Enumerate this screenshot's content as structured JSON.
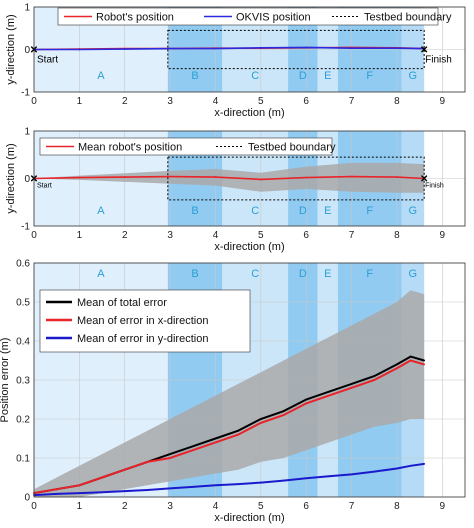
{
  "chart_data": [
    {
      "type": "line",
      "xlabel": "x-direction (m)",
      "ylabel": "y-direction (m)",
      "xlim": [
        0,
        9.5
      ],
      "ylim": [
        -1,
        1
      ],
      "xticks": [
        "0",
        "1",
        "2",
        "3",
        "4",
        "5",
        "6",
        "7",
        "8",
        "9"
      ],
      "yticks": [
        "-1",
        "0",
        "1"
      ],
      "grid": true,
      "legend_position": "top",
      "legend": [
        {
          "label": "Robot's position",
          "color": "#e8232a",
          "style": "solid"
        },
        {
          "label": "OKVIS position",
          "color": "#2a2ae0",
          "style": "solid"
        },
        {
          "label": "Testbed boundary",
          "color": "#000000",
          "style": "dotted"
        }
      ],
      "annotations": {
        "start": "Start",
        "finish": "Finish"
      },
      "zones": [
        {
          "label": "A",
          "from": 0,
          "to": 2.95
        },
        {
          "label": "B",
          "from": 2.95,
          "to": 4.15
        },
        {
          "label": "C",
          "from": 4.15,
          "to": 5.6
        },
        {
          "label": "D",
          "from": 5.6,
          "to": 6.25
        },
        {
          "label": "E",
          "from": 6.25,
          "to": 6.7
        },
        {
          "label": "F",
          "from": 6.7,
          "to": 8.1
        },
        {
          "label": "G",
          "from": 8.1,
          "to": 8.6
        }
      ],
      "boundary": {
        "x": [
          2.95,
          8.6
        ],
        "y": [
          -0.45,
          0.45
        ]
      },
      "series": [
        {
          "name": "Robot's position",
          "x": [
            0,
            1,
            2,
            3,
            4,
            5,
            6,
            7,
            8,
            8.6
          ],
          "y": [
            0,
            0.01,
            0.02,
            0.02,
            0.03,
            0.03,
            0.04,
            0.05,
            0.04,
            0.02
          ]
        },
        {
          "name": "OKVIS position",
          "x": [
            0,
            1,
            2,
            3,
            4,
            5,
            6,
            7,
            8,
            8.6
          ],
          "y": [
            0,
            0.0,
            0.01,
            0.02,
            0.02,
            0.04,
            0.05,
            0.03,
            0.03,
            0.02
          ]
        }
      ]
    },
    {
      "type": "line",
      "xlabel": "x-direction (m)",
      "ylabel": "y-direction (m)",
      "xlim": [
        0,
        9.5
      ],
      "ylim": [
        -1,
        1
      ],
      "xticks": [
        "0",
        "1",
        "2",
        "3",
        "4",
        "5",
        "6",
        "7",
        "8",
        "9"
      ],
      "yticks": [
        "-1",
        "0",
        "1"
      ],
      "grid": true,
      "legend_position": "top",
      "legend": [
        {
          "label": "Mean robot's position",
          "color": "#e8232a",
          "style": "solid"
        },
        {
          "label": "Testbed boundary",
          "color": "#000000",
          "style": "dotted"
        }
      ],
      "annotations": {
        "start": "Start",
        "finish": "Finish"
      },
      "zones": [
        {
          "label": "A",
          "from": 0,
          "to": 2.95
        },
        {
          "label": "B",
          "from": 2.95,
          "to": 4.15
        },
        {
          "label": "C",
          "from": 4.15,
          "to": 5.6
        },
        {
          "label": "D",
          "from": 5.6,
          "to": 6.25
        },
        {
          "label": "E",
          "from": 6.25,
          "to": 6.7
        },
        {
          "label": "F",
          "from": 6.7,
          "to": 8.1
        },
        {
          "label": "G",
          "from": 8.1,
          "to": 8.6
        }
      ],
      "boundary": {
        "x": [
          2.95,
          8.6
        ],
        "y": [
          -0.45,
          0.45
        ]
      },
      "series": [
        {
          "name": "Mean robot's position",
          "x": [
            0,
            1,
            2,
            3,
            4,
            5,
            6,
            7,
            8,
            8.6
          ],
          "y": [
            0,
            0.02,
            0.03,
            0.04,
            0.03,
            -0.02,
            0.02,
            0.04,
            0.03,
            0.0
          ],
          "band_lower": [
            0,
            -0.03,
            -0.07,
            -0.11,
            -0.15,
            -0.28,
            -0.22,
            -0.28,
            -0.3,
            -0.3
          ],
          "band_upper": [
            0,
            0.06,
            0.11,
            0.16,
            0.2,
            0.12,
            0.25,
            0.33,
            0.33,
            0.3
          ]
        }
      ]
    },
    {
      "type": "line",
      "xlabel": "x-direction (m)",
      "ylabel": "Position error (m)",
      "xlim": [
        0,
        9.5
      ],
      "ylim": [
        0,
        0.6
      ],
      "xticks": [
        "0",
        "1",
        "2",
        "3",
        "4",
        "5",
        "6",
        "7",
        "8",
        "9"
      ],
      "yticks": [
        "0",
        "0.1",
        "0.2",
        "0.3",
        "0.4",
        "0.5",
        "0.6"
      ],
      "grid": true,
      "legend_position": "upper-left",
      "zones": [
        {
          "label": "A",
          "from": 0,
          "to": 2.95
        },
        {
          "label": "B",
          "from": 2.95,
          "to": 4.15
        },
        {
          "label": "C",
          "from": 4.15,
          "to": 5.6
        },
        {
          "label": "D",
          "from": 5.6,
          "to": 6.25
        },
        {
          "label": "E",
          "from": 6.25,
          "to": 6.7
        },
        {
          "label": "F",
          "from": 6.7,
          "to": 8.1
        },
        {
          "label": "G",
          "from": 8.1,
          "to": 8.6
        }
      ],
      "series": [
        {
          "name": "Mean of total error",
          "color": "#000000",
          "x": [
            0,
            0.5,
            1,
            1.5,
            2,
            2.5,
            3,
            3.5,
            4,
            4.5,
            5,
            5.5,
            6,
            6.5,
            7,
            7.5,
            8,
            8.3,
            8.6
          ],
          "y": [
            0.01,
            0.02,
            0.03,
            0.05,
            0.07,
            0.09,
            0.11,
            0.13,
            0.15,
            0.17,
            0.2,
            0.22,
            0.25,
            0.27,
            0.29,
            0.31,
            0.34,
            0.36,
            0.35
          ],
          "band_lower": [
            0,
            0,
            0,
            0.01,
            0.02,
            0.03,
            0.04,
            0.05,
            0.06,
            0.07,
            0.09,
            0.1,
            0.12,
            0.14,
            0.16,
            0.18,
            0.19,
            0.2,
            0.2
          ],
          "band_upper": [
            0.02,
            0.05,
            0.08,
            0.11,
            0.14,
            0.17,
            0.2,
            0.23,
            0.26,
            0.29,
            0.32,
            0.35,
            0.38,
            0.41,
            0.44,
            0.47,
            0.5,
            0.53,
            0.52
          ]
        },
        {
          "name": "Mean of error in x-direction",
          "color": "#e8232a",
          "x": [
            0,
            0.5,
            1,
            1.5,
            2,
            2.5,
            3,
            3.5,
            4,
            4.5,
            5,
            5.5,
            6,
            6.5,
            7,
            7.5,
            8,
            8.3,
            8.6
          ],
          "y": [
            0.01,
            0.02,
            0.03,
            0.05,
            0.07,
            0.09,
            0.1,
            0.12,
            0.14,
            0.16,
            0.19,
            0.21,
            0.24,
            0.26,
            0.28,
            0.3,
            0.33,
            0.35,
            0.34
          ]
        },
        {
          "name": "Mean of error in y-direction",
          "color": "#1a1acc",
          "x": [
            0,
            0.5,
            1,
            1.5,
            2,
            2.5,
            3,
            3.5,
            4,
            4.5,
            5,
            5.5,
            6,
            6.5,
            7,
            7.5,
            8,
            8.3,
            8.6
          ],
          "y": [
            0.005,
            0.008,
            0.01,
            0.012,
            0.015,
            0.018,
            0.022,
            0.026,
            0.03,
            0.033,
            0.037,
            0.042,
            0.048,
            0.053,
            0.058,
            0.065,
            0.073,
            0.08,
            0.085
          ]
        }
      ]
    }
  ]
}
